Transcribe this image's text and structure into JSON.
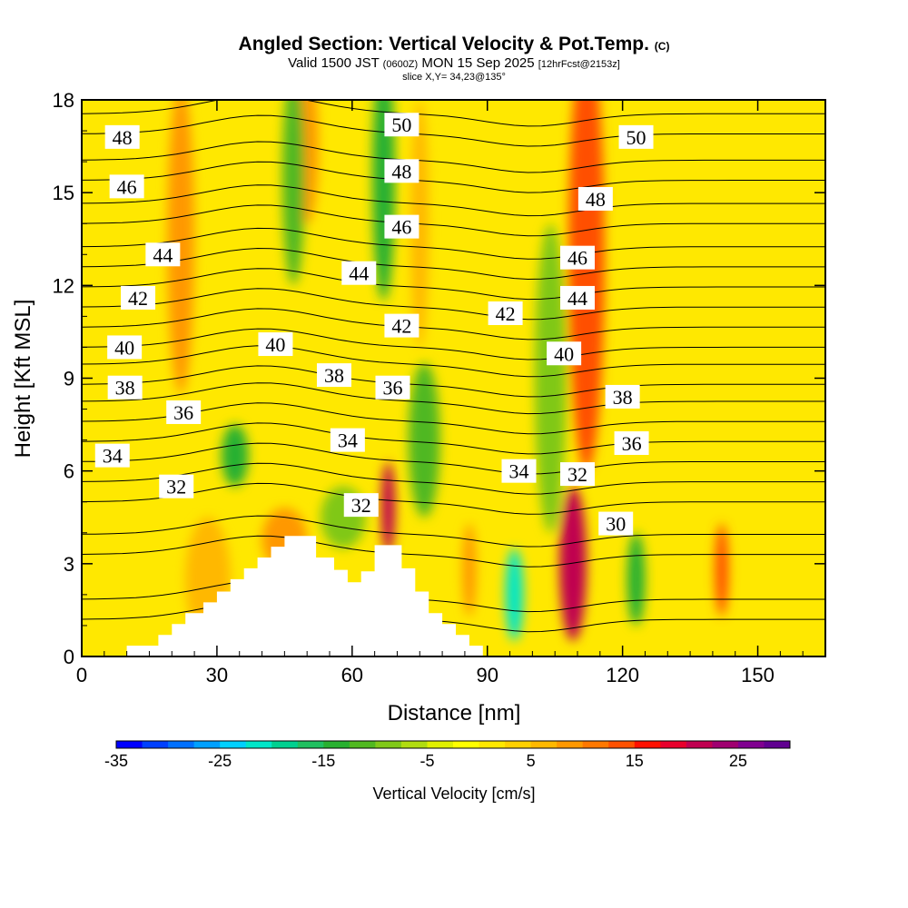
{
  "header": {
    "title": "Angled Section: Vertical Velocity & Pot.Temp.",
    "title_mark": "(C)",
    "valid_prefix": "Valid 1500 JST",
    "valid_utc": "(0600Z)",
    "valid_date": "MON 15 Sep 2025",
    "valid_fcst": "[12hrFcst@2153z]",
    "slice": "slice X,Y= 34,23@135°"
  },
  "chart_data": {
    "type": "heatmap",
    "title": "Angled Section: Vertical Velocity & Pot.Temp.",
    "xlabel": "Distance [nm]",
    "ylabel": "Height [Kft MSL]",
    "xlim": [
      0,
      165
    ],
    "ylim": [
      0,
      18
    ],
    "x_ticks": [
      "0",
      "30",
      "60",
      "90",
      "120",
      "150"
    ],
    "y_ticks": [
      "0",
      "3",
      "6",
      "9",
      "12",
      "15",
      "18"
    ],
    "colorbar": {
      "label": "Vertical Velocity [cm/s]",
      "range": [
        -35,
        30
      ],
      "step": 2.5,
      "tick_labels": [
        "-35",
        "-25",
        "-15",
        "-5",
        "5",
        "15",
        "25"
      ],
      "colors": [
        "#0000ff",
        "#0040ff",
        "#0070ff",
        "#00a0ff",
        "#00d0ff",
        "#00e6c8",
        "#00d090",
        "#20c060",
        "#28b030",
        "#50b820",
        "#80c818",
        "#b0dc10",
        "#e0f000",
        "#ffff00",
        "#ffe800",
        "#ffd000",
        "#ffb800",
        "#ff9800",
        "#ff7800",
        "#ff5000",
        "#ff1000",
        "#e8002c",
        "#c00050",
        "#a00070",
        "#800090",
        "#600090"
      ]
    },
    "terrain": {
      "x": [
        0,
        10,
        10,
        17,
        17,
        20,
        20,
        23,
        23,
        27,
        27,
        30,
        30,
        33,
        33,
        36,
        36,
        39,
        39,
        42,
        42,
        45,
        45,
        52,
        52,
        56,
        56,
        59,
        59,
        62,
        62,
        65,
        65,
        71,
        71,
        74,
        74,
        77,
        77,
        80,
        80,
        83,
        83,
        86,
        86,
        89,
        89,
        165
      ],
      "y": [
        0,
        0,
        0.35,
        0.35,
        0.7,
        0.7,
        1.05,
        1.05,
        1.4,
        1.4,
        1.75,
        1.75,
        2.1,
        2.1,
        2.5,
        2.5,
        2.85,
        2.85,
        3.2,
        3.2,
        3.55,
        3.55,
        3.9,
        3.9,
        3.2,
        3.2,
        2.8,
        2.8,
        2.4,
        2.4,
        2.75,
        2.75,
        3.6,
        3.6,
        2.85,
        2.85,
        2.1,
        2.1,
        1.4,
        1.4,
        1.05,
        1.05,
        0.7,
        0.7,
        0.35,
        0.35,
        0,
        0
      ]
    },
    "vertical_velocity_features": [
      {
        "x": 22,
        "z": 13.5,
        "value": 8,
        "width_nm": 6,
        "height_kft": 10
      },
      {
        "x": 50,
        "z": 16.5,
        "value": 8,
        "width_nm": 5,
        "height_kft": 5
      },
      {
        "x": 45,
        "z": 3.8,
        "value": 8,
        "width_nm": 10,
        "height_kft": 2
      },
      {
        "x": 28,
        "z": 2.5,
        "value": 6,
        "width_nm": 10,
        "height_kft": 4
      },
      {
        "x": 68,
        "z": 4.8,
        "value": 21,
        "width_nm": 3,
        "height_kft": 3
      },
      {
        "x": 75,
        "z": 14,
        "value": 6,
        "width_nm": 4,
        "height_kft": 8
      },
      {
        "x": 112,
        "z": 13,
        "value": 14,
        "width_nm": 8,
        "height_kft": 14
      },
      {
        "x": 109,
        "z": 3,
        "value": 20,
        "width_nm": 6,
        "height_kft": 5
      },
      {
        "x": 142,
        "z": 2.8,
        "value": 14,
        "width_nm": 3,
        "height_kft": 3
      },
      {
        "x": 86,
        "z": 2.8,
        "value": 8,
        "width_nm": 3,
        "height_kft": 3
      },
      {
        "x": 67,
        "z": 15.5,
        "value": -14,
        "width_nm": 5,
        "height_kft": 8
      },
      {
        "x": 47,
        "z": 15.5,
        "value": -11,
        "width_nm": 5,
        "height_kft": 7
      },
      {
        "x": 76,
        "z": 7,
        "value": -12,
        "width_nm": 7,
        "height_kft": 5
      },
      {
        "x": 104,
        "z": 9,
        "value": -10,
        "width_nm": 7,
        "height_kft": 10
      },
      {
        "x": 96,
        "z": 2,
        "value": -22,
        "width_nm": 4,
        "height_kft": 3
      },
      {
        "x": 123,
        "z": 2.5,
        "value": -13,
        "width_nm": 4,
        "height_kft": 3
      },
      {
        "x": 34,
        "z": 6.5,
        "value": -13,
        "width_nm": 6,
        "height_kft": 2
      },
      {
        "x": 58,
        "z": 4.5,
        "value": -9,
        "width_nm": 10,
        "height_kft": 2
      }
    ],
    "theta_contour_levels": [
      28,
      30,
      32,
      34,
      36,
      38,
      40,
      42,
      44,
      46,
      48,
      50
    ],
    "theta_labels": [
      {
        "text": "48",
        "x": 9,
        "z": 16.8
      },
      {
        "text": "46",
        "x": 10,
        "z": 15.2
      },
      {
        "text": "44",
        "x": 18,
        "z": 13
      },
      {
        "text": "42",
        "x": 12.5,
        "z": 11.6
      },
      {
        "text": "40",
        "x": 9.5,
        "z": 10
      },
      {
        "text": "40",
        "x": 43,
        "z": 10.1
      },
      {
        "text": "38",
        "x": 9.6,
        "z": 8.7
      },
      {
        "text": "38",
        "x": 56,
        "z": 9.1
      },
      {
        "text": "36",
        "x": 22.6,
        "z": 7.9
      },
      {
        "text": "36",
        "x": 69,
        "z": 8.7
      },
      {
        "text": "34",
        "x": 6.8,
        "z": 6.5
      },
      {
        "text": "34",
        "x": 59,
        "z": 7
      },
      {
        "text": "32",
        "x": 21,
        "z": 5.5
      },
      {
        "text": "32",
        "x": 62,
        "z": 4.9
      },
      {
        "text": "44",
        "x": 61.5,
        "z": 12.4
      },
      {
        "text": "42",
        "x": 71,
        "z": 10.7
      },
      {
        "text": "50",
        "x": 71,
        "z": 17.2
      },
      {
        "text": "48",
        "x": 71,
        "z": 15.7
      },
      {
        "text": "46",
        "x": 71,
        "z": 13.9
      },
      {
        "text": "42",
        "x": 94,
        "z": 11.1
      },
      {
        "text": "34",
        "x": 97,
        "z": 6
      },
      {
        "text": "32",
        "x": 110,
        "z": 5.9
      },
      {
        "text": "30",
        "x": 118.5,
        "z": 4.3
      },
      {
        "text": "50",
        "x": 123,
        "z": 16.8
      },
      {
        "text": "48",
        "x": 114,
        "z": 14.8
      },
      {
        "text": "46",
        "x": 110,
        "z": 12.9
      },
      {
        "text": "44",
        "x": 110,
        "z": 11.6
      },
      {
        "text": "40",
        "x": 107,
        "z": 9.8
      },
      {
        "text": "38",
        "x": 120,
        "z": 8.4
      },
      {
        "text": "36",
        "x": 122,
        "z": 6.9
      }
    ]
  }
}
